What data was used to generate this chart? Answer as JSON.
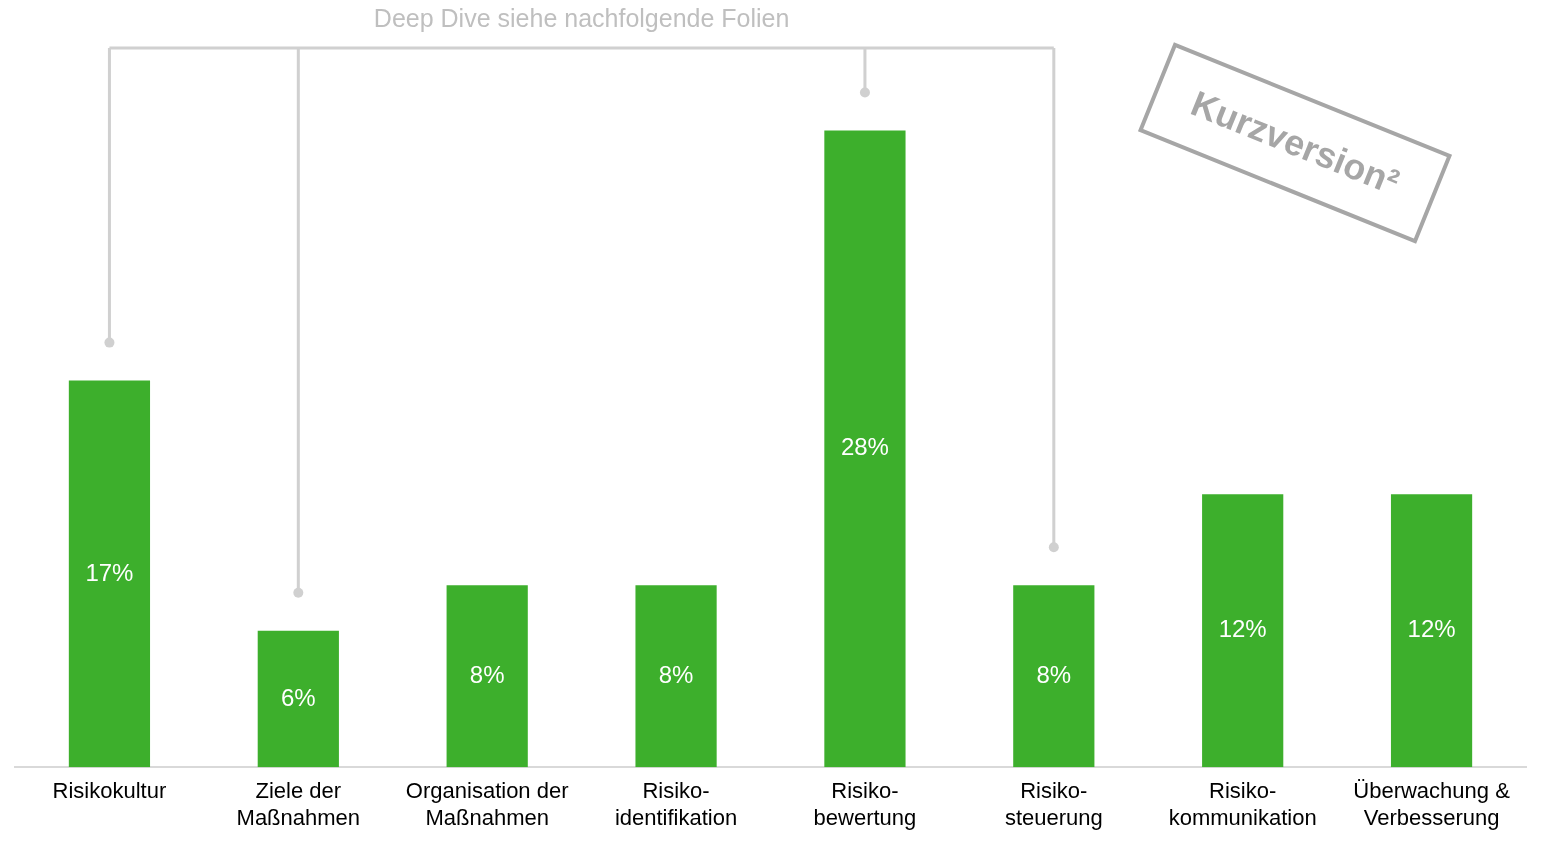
{
  "chart_data": {
    "type": "bar",
    "categories": [
      "Risikokultur",
      "Ziele der Maßnahmen",
      "Organisation der Maßnahmen",
      "Risiko-identifikation",
      "Risiko-bewertung",
      "Risiko-steuerung",
      "Risiko-kommunikation",
      "Überwachung & Verbesserung"
    ],
    "values": [
      17,
      6,
      8,
      8,
      28,
      8,
      12,
      12
    ],
    "color": "#3daf2c",
    "data_labels": true,
    "value_labels": [
      "17%",
      "6%",
      "8%",
      "8%",
      "28%",
      "8%",
      "12%",
      "12%"
    ],
    "annotations": [
      "Deep Dive siehe nachfolgende Folien",
      "Kurzversion²"
    ],
    "legend": false
  }
}
